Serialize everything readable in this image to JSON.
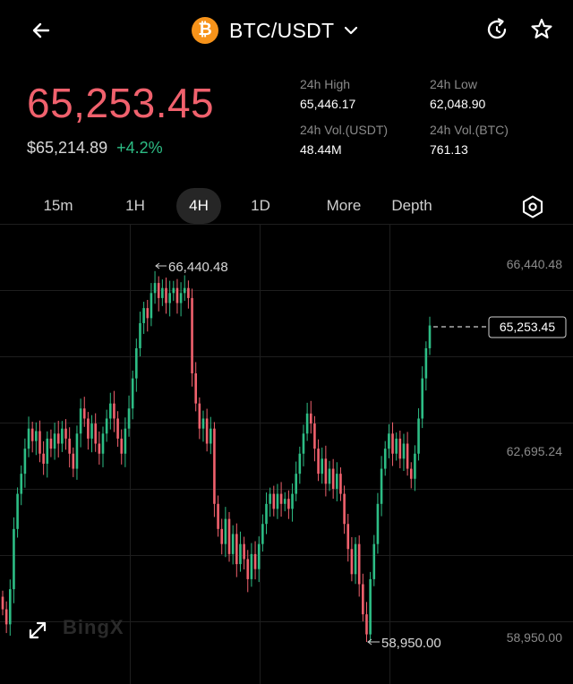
{
  "header": {
    "pair": "BTC/USDT",
    "coin_symbol": "₿",
    "icons": [
      "back-arrow-icon",
      "bitcoin-icon",
      "chevron-down-icon",
      "refresh-icon",
      "star-icon"
    ]
  },
  "ticker": {
    "price": "65,253.45",
    "usd_value": "$65,214.89",
    "change": "+4.2%",
    "stats": [
      {
        "label": "24h High",
        "value": "65,446.17"
      },
      {
        "label": "24h Low",
        "value": "62,048.90"
      },
      {
        "label": "24h Vol.(USDT)",
        "value": "48.44M"
      },
      {
        "label": "24h Vol.(BTC)",
        "value": "761.13"
      }
    ]
  },
  "tabs": [
    {
      "label": "15m",
      "active": false
    },
    {
      "label": "1H",
      "active": false
    },
    {
      "label": "4H",
      "active": true
    },
    {
      "label": "1D",
      "active": false
    },
    {
      "label": "More",
      "active": false
    },
    {
      "label": "Depth",
      "active": false
    }
  ],
  "chart": {
    "axis_labels": [
      "66,440.48",
      "62,695.24",
      "58,950.00"
    ],
    "max_label": "66,440.48",
    "min_label": "58,950.00",
    "last_price_label": "65,253.45",
    "watermark": "BingX",
    "colors": {
      "up": "#2dbd85",
      "down": "#f0616d",
      "grid": "#1e1e1e"
    },
    "price_range": [
      58950.0,
      66440.48
    ],
    "closes": [
      59600,
      59300,
      60000,
      61200,
      61900,
      62300,
      62800,
      63200,
      62950,
      63150,
      62700,
      62500,
      63000,
      62800,
      63100,
      62900,
      63200,
      63000,
      62700,
      62400,
      63100,
      63600,
      63400,
      63000,
      63300,
      62900,
      62700,
      63100,
      63400,
      63700,
      63400,
      63000,
      62700,
      63200,
      63600,
      64200,
      64800,
      65300,
      65600,
      65400,
      65900,
      66100,
      65800,
      66000,
      65700,
      65900,
      66000,
      65700,
      65900,
      66000,
      65800,
      64300,
      63700,
      63200,
      63400,
      62900,
      63200,
      61700,
      61200,
      60900,
      61400,
      60700,
      61100,
      60500,
      60900,
      60600,
      60200,
      60700,
      60400,
      60900,
      61300,
      61700,
      61900,
      61600,
      61900,
      61700,
      61800,
      61600,
      61900,
      62300,
      62700,
      63100,
      63500,
      63300,
      62800,
      62300,
      62600,
      62100,
      62400,
      62000,
      62300,
      61900,
      61300,
      60800,
      60300,
      60900,
      60100,
      59500,
      59100,
      60200,
      60900,
      61700,
      62400,
      62800,
      63100,
      62700,
      63000,
      62600,
      62900,
      62400,
      62200,
      62700,
      63400,
      64200,
      64800,
      65253.45
    ]
  }
}
